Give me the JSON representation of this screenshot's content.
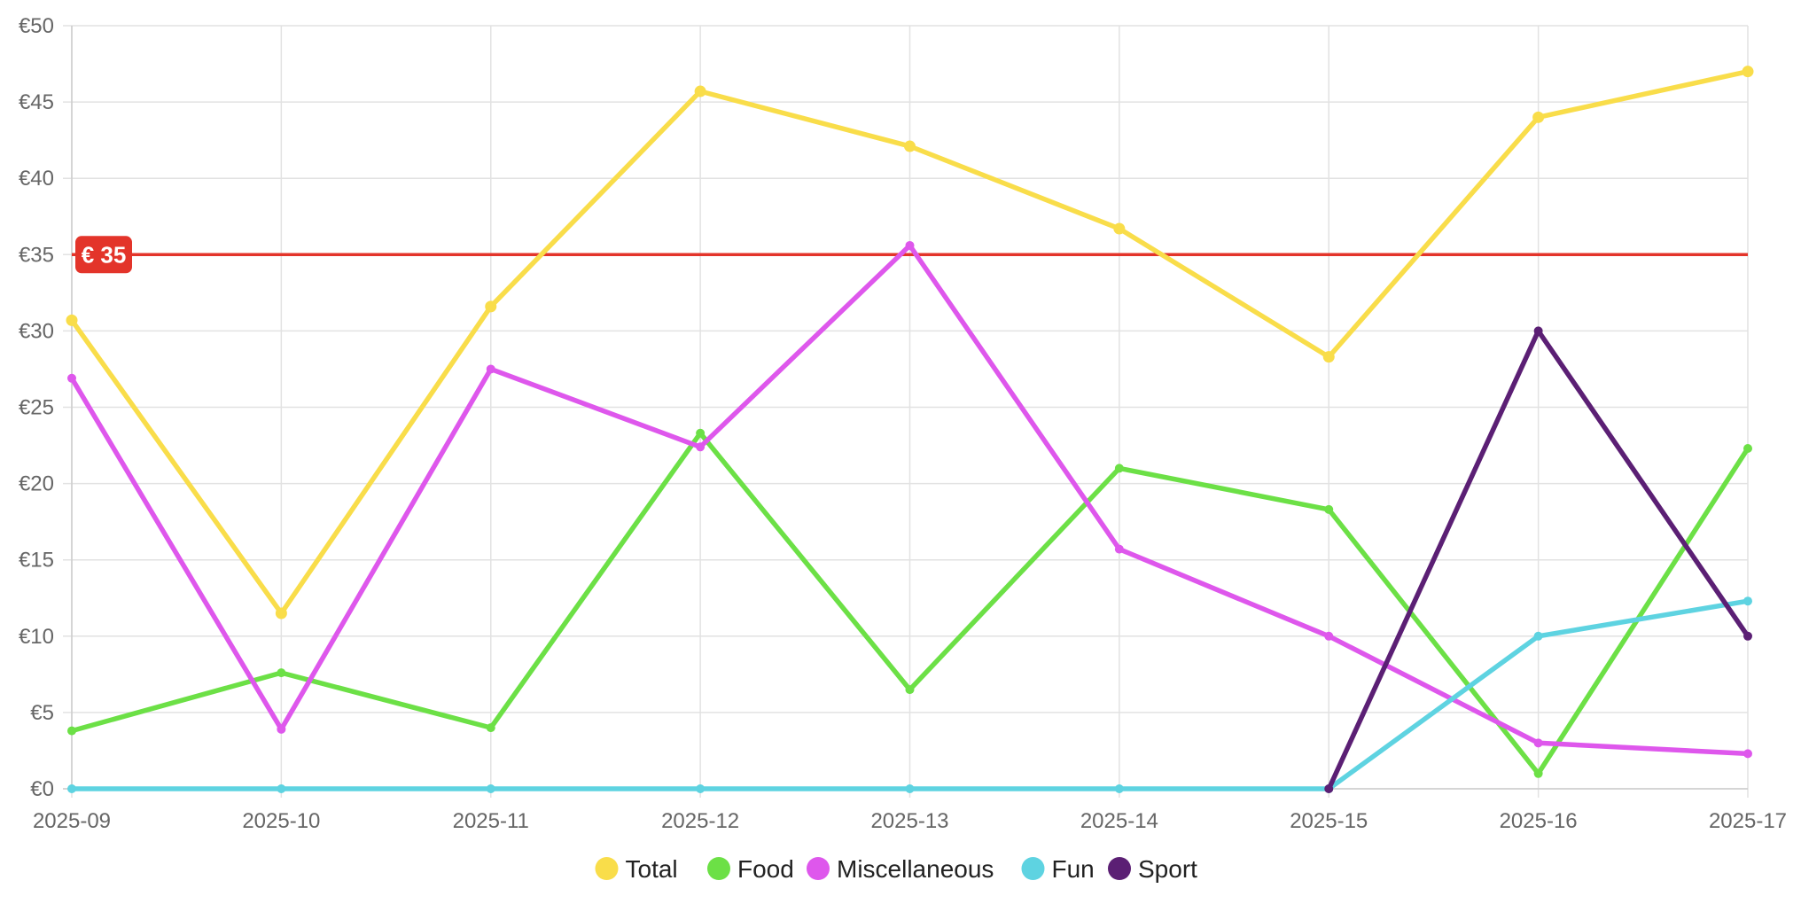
{
  "chart_data": {
    "type": "line",
    "title": "",
    "xlabel": "",
    "ylabel": "",
    "x": [
      "2025-09",
      "2025-10",
      "2025-11",
      "2025-12",
      "2025-13",
      "2025-14",
      "2025-15",
      "2025-16",
      "2025-17"
    ],
    "ylim": [
      0,
      50
    ],
    "yticks": [
      0,
      5,
      10,
      15,
      20,
      25,
      30,
      35,
      40,
      45,
      50
    ],
    "y_tick_prefix": "€",
    "grid": true,
    "legend_position": "bottom",
    "series": [
      {
        "name": "Total",
        "color": "#F9DD4A",
        "values": [
          30.7,
          11.5,
          31.6,
          45.7,
          42.1,
          36.7,
          28.3,
          44.0,
          47.0
        ]
      },
      {
        "name": "Food",
        "color": "#6CE046",
        "values": [
          3.8,
          7.6,
          4.0,
          23.3,
          6.5,
          21.0,
          18.3,
          1.0,
          22.3
        ]
      },
      {
        "name": "Miscellaneous",
        "color": "#DE57EC",
        "values": [
          26.9,
          3.9,
          27.5,
          22.4,
          35.6,
          15.7,
          10.0,
          3.0,
          2.3
        ]
      },
      {
        "name": "Fun",
        "color": "#5ED3E1",
        "values": [
          0,
          0,
          0,
          0,
          0,
          0,
          0,
          10.0,
          12.3
        ]
      },
      {
        "name": "Sport",
        "color": "#5B1F74",
        "values": [
          null,
          null,
          null,
          null,
          null,
          null,
          0,
          30.0,
          10.0
        ]
      }
    ],
    "threshold": {
      "value": 35,
      "label": "€ 35",
      "color": "#E3342A"
    }
  }
}
